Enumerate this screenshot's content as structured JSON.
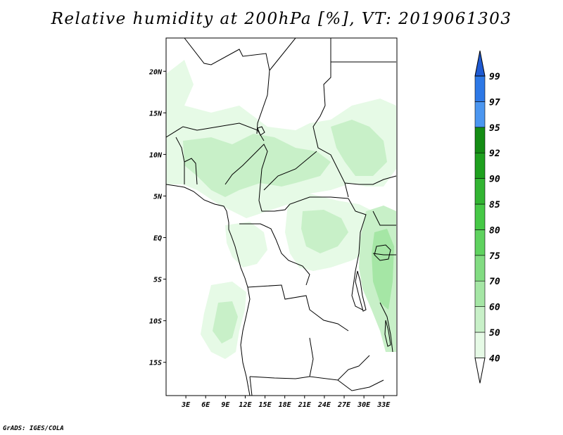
{
  "title": "Relative humidity at 200hPa [%], VT: 2019061303",
  "credit": "GrADS: IGES/COLA",
  "map": {
    "lat_range": [
      -19,
      24
    ],
    "lon_range": [
      0,
      35
    ],
    "lat_ticks": [
      {
        "value": 20,
        "label": "20N"
      },
      {
        "value": 15,
        "label": "15N"
      },
      {
        "value": 10,
        "label": "10N"
      },
      {
        "value": 5,
        "label": "5N"
      },
      {
        "value": 0,
        "label": "EQ"
      },
      {
        "value": -5,
        "label": "5S"
      },
      {
        "value": -10,
        "label": "10S"
      },
      {
        "value": -15,
        "label": "15S"
      }
    ],
    "lon_ticks": [
      {
        "value": 3,
        "label": "3E"
      },
      {
        "value": 6,
        "label": "6E"
      },
      {
        "value": 9,
        "label": "9E"
      },
      {
        "value": 12,
        "label": "12E"
      },
      {
        "value": 15,
        "label": "15E"
      },
      {
        "value": 18,
        "label": "18E"
      },
      {
        "value": 21,
        "label": "21E"
      },
      {
        "value": 24,
        "label": "24E"
      },
      {
        "value": 27,
        "label": "27E"
      },
      {
        "value": 30,
        "label": "30E"
      },
      {
        "value": 33,
        "label": "33E"
      }
    ]
  },
  "colorbar": {
    "levels": [
      "40",
      "50",
      "60",
      "70",
      "75",
      "80",
      "85",
      "90",
      "92",
      "95",
      "97",
      "99"
    ],
    "colors": [
      "#e6fae6",
      "#c8f0c8",
      "#a5e6a5",
      "#82dc82",
      "#5fd25f",
      "#46c846",
      "#32b432",
      "#1ea01e",
      "#148c14",
      "#4b96f0",
      "#2d78e6",
      "#1e5ad2"
    ]
  },
  "colors": {
    "humidity_light": "#e6fae6",
    "humidity_medium": "#c8f0c8",
    "humidity_strong": "#a5e6a5",
    "outline": "#000000",
    "ocean": "#ffffff"
  }
}
